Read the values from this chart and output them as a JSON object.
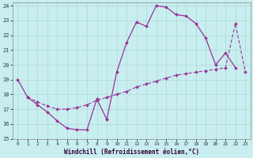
{
  "xlabel": "Windchill (Refroidissement éolien,°C)",
  "background_color": "#c8eef0",
  "line_color": "#993399",
  "grid_color": "#b0d8d8",
  "xlim": [
    -0.5,
    23.5
  ],
  "ylim": [
    15,
    24.2
  ],
  "yticks": [
    15,
    16,
    17,
    18,
    19,
    20,
    21,
    22,
    23,
    24
  ],
  "xticks": [
    0,
    1,
    2,
    3,
    4,
    5,
    6,
    7,
    8,
    9,
    10,
    11,
    12,
    13,
    14,
    15,
    16,
    17,
    18,
    19,
    20,
    21,
    22,
    23
  ],
  "line1_x": [
    0,
    1,
    2,
    3,
    4,
    5,
    6,
    7,
    8,
    9
  ],
  "line1_y": [
    19.0,
    17.8,
    17.3,
    16.8,
    16.2,
    15.7,
    15.6,
    15.6,
    17.7,
    16.3
  ],
  "line2_x": [
    9,
    10,
    11,
    12,
    13,
    14,
    15,
    16,
    17,
    18,
    19,
    20,
    21,
    22
  ],
  "line2_y": [
    16.3,
    19.5,
    21.5,
    22.9,
    22.6,
    24.0,
    23.9,
    23.4,
    23.3,
    22.8,
    21.8,
    20.0,
    20.8,
    19.8
  ],
  "line3_x": [
    1,
    2,
    3,
    4,
    5,
    6,
    7,
    8,
    9,
    10,
    11,
    12,
    13,
    14,
    15,
    16,
    17,
    18,
    19,
    20,
    21,
    22,
    23
  ],
  "line3_y": [
    17.8,
    17.5,
    17.2,
    17.0,
    17.0,
    17.1,
    17.3,
    17.6,
    17.8,
    18.0,
    18.2,
    18.5,
    18.7,
    18.9,
    19.1,
    19.3,
    19.4,
    19.5,
    19.6,
    19.7,
    19.8,
    22.8,
    19.5
  ]
}
